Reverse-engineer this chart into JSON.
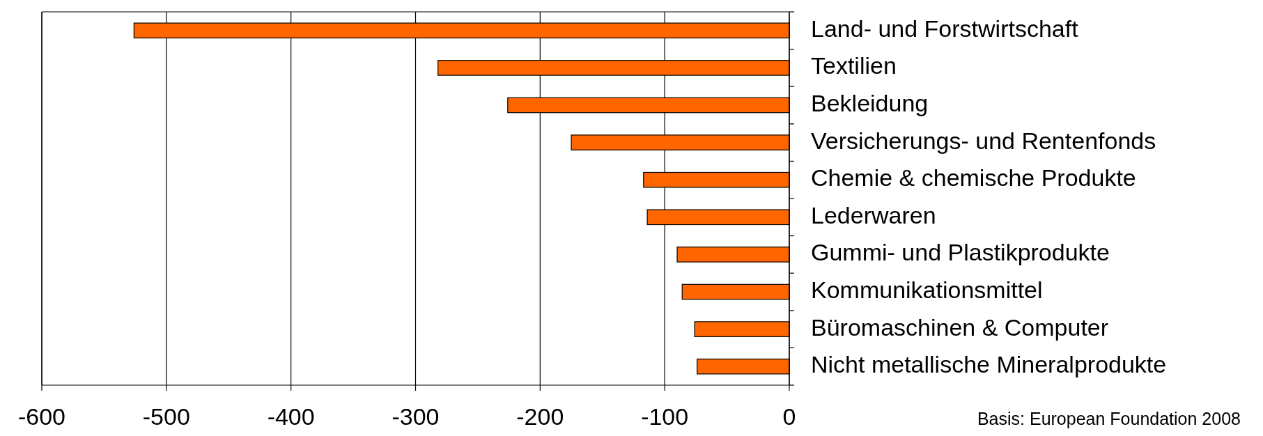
{
  "chart_data": {
    "type": "bar",
    "orientation": "horizontal",
    "categories": [
      "Land- und Forstwirtschaft",
      "Textilien",
      "Bekleidung",
      "Versicherungs- und Rentenfonds",
      "Chemie & chemische Produkte",
      "Lederwaren",
      "Gummi- und Plastikprodukte",
      "Kommunikationsmittel",
      "Büromaschinen & Computer",
      "Nicht metallische Mineralprodukte"
    ],
    "values": [
      -526,
      -282,
      -226,
      -175,
      -117,
      -114,
      -90,
      -86,
      -76,
      -74
    ],
    "color": "#ff6600",
    "xlim": [
      -600,
      0
    ],
    "xticks": [
      -600,
      -500,
      -400,
      -300,
      -200,
      -100,
      0
    ],
    "grid": "x",
    "annotations": [
      "Basis: European Foundation  2008"
    ]
  }
}
